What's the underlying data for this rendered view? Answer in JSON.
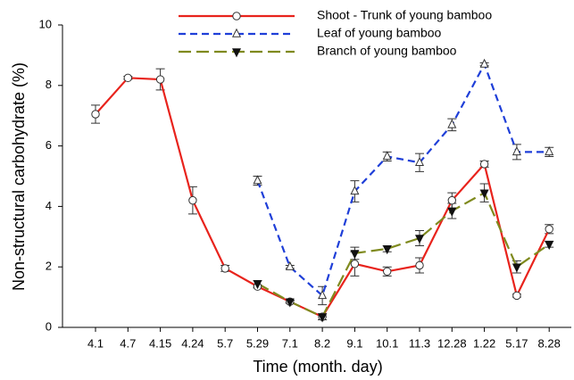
{
  "chart_data": {
    "type": "line",
    "x_label": "Time (month. day)",
    "y_label": "Non-structural carbohydrate (%)",
    "categories": [
      "4.1",
      "4.7",
      "4.15",
      "4.24",
      "5.7",
      "5.29",
      "7.1",
      "8.2",
      "9.1",
      "10.1",
      "11.3",
      "12.28",
      "1.22",
      "5.17",
      "8.28"
    ],
    "ylim": [
      0,
      10
    ],
    "yticks": [
      0,
      2,
      4,
      6,
      8,
      10
    ],
    "grid": false,
    "legend": "top",
    "series": [
      {
        "name": "Shoot - Trunk of young bamboo",
        "color": "#e8231c",
        "dash": "solid",
        "marker": "circle",
        "values": [
          7.05,
          8.25,
          8.2,
          4.2,
          1.95,
          1.35,
          0.85,
          0.35,
          2.1,
          1.85,
          2.05,
          4.2,
          5.4,
          1.05,
          3.25
        ],
        "errors": [
          0.3,
          0.05,
          0.35,
          0.45,
          0.1,
          0.05,
          0.05,
          0.1,
          0.4,
          0.15,
          0.25,
          0.25,
          0.1,
          0.05,
          0.15
        ]
      },
      {
        "name": "Leaf of young bamboo",
        "color": "#1f3fd8",
        "dash": "dashed",
        "marker": "triangle-up",
        "values": [
          null,
          null,
          null,
          null,
          null,
          4.85,
          2.0,
          1.05,
          4.5,
          5.65,
          5.45,
          6.7,
          8.7,
          5.8,
          5.8
        ],
        "errors": [
          null,
          null,
          null,
          null,
          null,
          0.15,
          0.05,
          0.3,
          0.35,
          0.15,
          0.3,
          0.2,
          0.05,
          0.25,
          0.15
        ]
      },
      {
        "name": "Branch of young bamboo",
        "color": "#7f8a1e",
        "dash": "longdash",
        "marker": "triangle-down",
        "values": [
          null,
          null,
          null,
          null,
          null,
          1.45,
          0.85,
          0.35,
          2.45,
          2.6,
          2.95,
          3.85,
          4.45,
          2.0,
          2.75
        ],
        "errors": [
          null,
          null,
          null,
          null,
          null,
          0.1,
          0.05,
          0.1,
          0.2,
          0.1,
          0.25,
          0.25,
          0.3,
          0.2,
          0.1
        ]
      }
    ]
  }
}
